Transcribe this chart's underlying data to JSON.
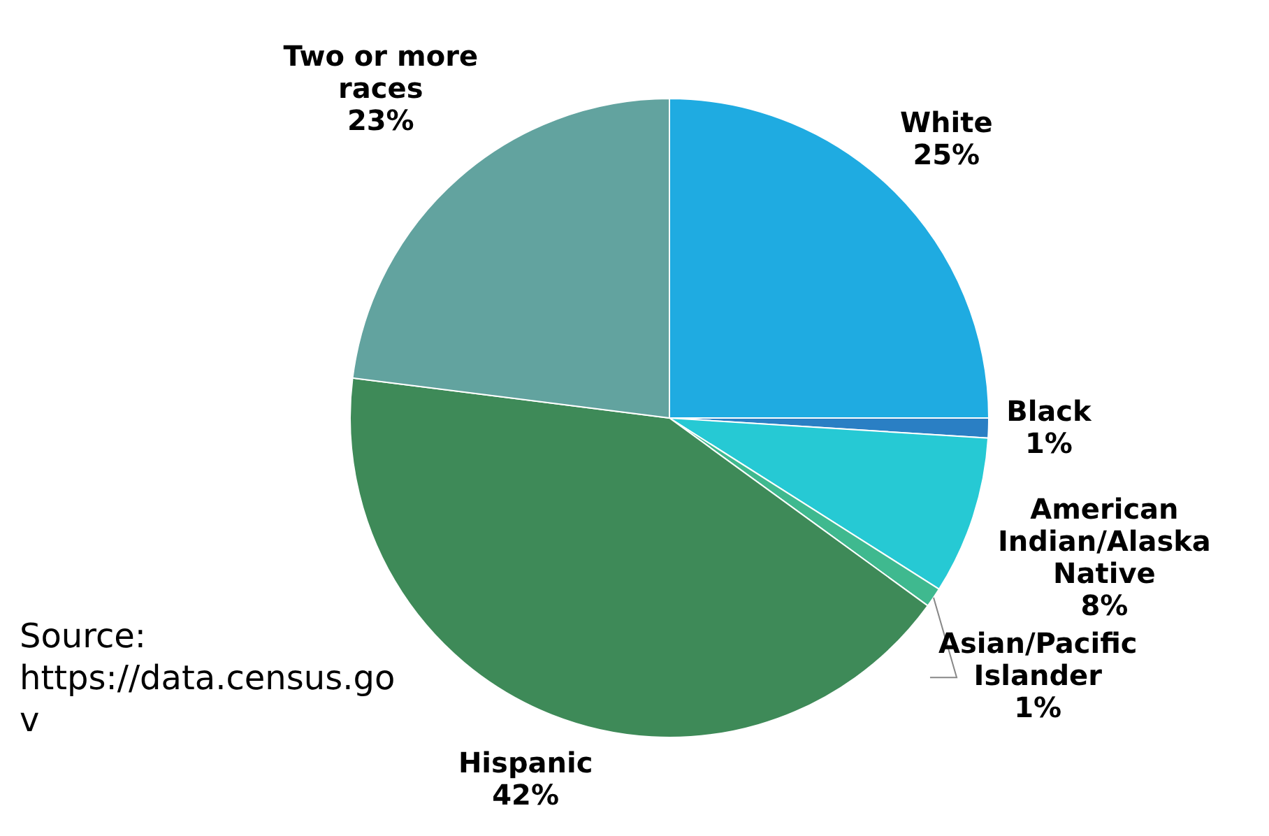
{
  "chart_data": {
    "type": "pie",
    "categories": [
      "White",
      "Black",
      "American Indian/Alaska Native",
      "Asian/Pacific Islander",
      "Hispanic",
      "Two or more races"
    ],
    "values": [
      25,
      1,
      8,
      1,
      42,
      23
    ],
    "colors": [
      "#1fabe1",
      "#2a7fc4",
      "#26c9d4",
      "#3fb98f",
      "#3e8a58",
      "#62a39f"
    ],
    "value_labels": [
      "25%",
      "1%",
      "8%",
      "1%",
      "42%",
      "23%"
    ],
    "annotations": [
      "Source: https://data.census.gov"
    ]
  }
}
